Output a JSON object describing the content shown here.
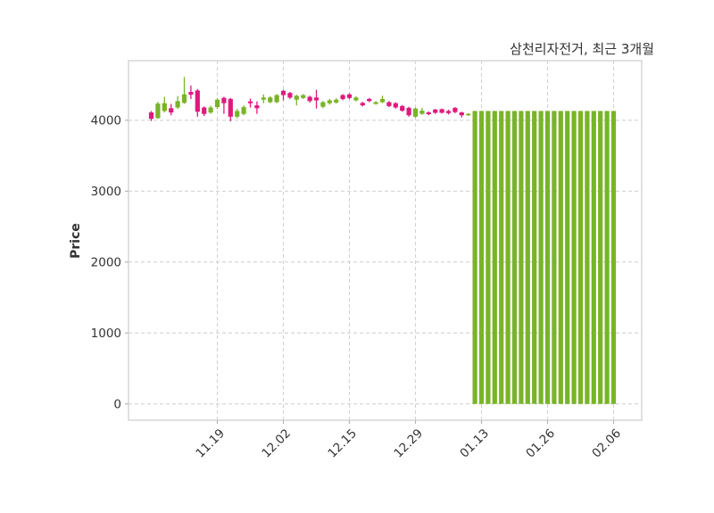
{
  "title": "삼천리자전거, 최근 3개월",
  "colors": {
    "up": "#79b428",
    "down": "#df1a7d",
    "grid": "#d2d2d2",
    "spine": "#d9d9d9",
    "tick": "#b5b5b5",
    "text": "#333333",
    "background": "#ffffff"
  },
  "chart_data": {
    "type": "candlestick",
    "title": "삼천리자전거, 최근 3개월",
    "ylabel": "Price",
    "xlabel": "",
    "ylim": [
      -230,
      4840
    ],
    "yticks": [
      0,
      1000,
      2000,
      3000,
      4000
    ],
    "xtick_labels": [
      "11.19",
      "12.02",
      "12.15",
      "12.29",
      "01.13",
      "01.26",
      "02.06"
    ],
    "xtick_indices": [
      10,
      20,
      30,
      40,
      50,
      60,
      70
    ],
    "grid": "dashed, both axes",
    "legend": "none",
    "up_color": "#79b428",
    "down_color": "#df1a7d",
    "note": "last 22 sessions render as full bars from 0 to ~4130 (open/low = 0)",
    "ohlc": [
      [
        4110,
        4130,
        3990,
        4020
      ],
      [
        4030,
        4260,
        4020,
        4235
      ],
      [
        4130,
        4330,
        4110,
        4240
      ],
      [
        4170,
        4230,
        4070,
        4110
      ],
      [
        4180,
        4340,
        4160,
        4270
      ],
      [
        4245,
        4610,
        4230,
        4365
      ],
      [
        4400,
        4490,
        4300,
        4360
      ],
      [
        4420,
        4440,
        4050,
        4120
      ],
      [
        4180,
        4195,
        4060,
        4090
      ],
      [
        4110,
        4205,
        4090,
        4180
      ],
      [
        4185,
        4310,
        4160,
        4290
      ],
      [
        4315,
        4330,
        4090,
        4240
      ],
      [
        4300,
        4315,
        3985,
        4050
      ],
      [
        4050,
        4160,
        4030,
        4130
      ],
      [
        4090,
        4210,
        4070,
        4185
      ],
      [
        4265,
        4305,
        4180,
        4240
      ],
      [
        4210,
        4265,
        4090,
        4170
      ],
      [
        4290,
        4365,
        4240,
        4320
      ],
      [
        4255,
        4340,
        4240,
        4320
      ],
      [
        4255,
        4370,
        4240,
        4355
      ],
      [
        4415,
        4430,
        4280,
        4355
      ],
      [
        4385,
        4400,
        4300,
        4320
      ],
      [
        4290,
        4360,
        4210,
        4345
      ],
      [
        4315,
        4370,
        4300,
        4355
      ],
      [
        4330,
        4345,
        4250,
        4270
      ],
      [
        4320,
        4430,
        4165,
        4280
      ],
      [
        4190,
        4270,
        4170,
        4255
      ],
      [
        4240,
        4300,
        4220,
        4280
      ],
      [
        4250,
        4310,
        4235,
        4290
      ],
      [
        4355,
        4370,
        4280,
        4300
      ],
      [
        4365,
        4380,
        4295,
        4315
      ],
      [
        4280,
        4340,
        4265,
        4320
      ],
      [
        4245,
        4260,
        4195,
        4210
      ],
      [
        4300,
        4315,
        4255,
        4270
      ],
      [
        4230,
        4270,
        4220,
        4255
      ],
      [
        4255,
        4345,
        4240,
        4300
      ],
      [
        4255,
        4270,
        4185,
        4200
      ],
      [
        4240,
        4255,
        4165,
        4180
      ],
      [
        4200,
        4215,
        4120,
        4135
      ],
      [
        4175,
        4190,
        4050,
        4070
      ],
      [
        4050,
        4180,
        4035,
        4165
      ],
      [
        4090,
        4175,
        4075,
        4135
      ],
      [
        4110,
        4125,
        4070,
        4085
      ],
      [
        4150,
        4160,
        4090,
        4105
      ],
      [
        4155,
        4165,
        4095,
        4105
      ],
      [
        4130,
        4150,
        4080,
        4100
      ],
      [
        4175,
        4185,
        4100,
        4115
      ],
      [
        4110,
        4120,
        4040,
        4070
      ],
      [
        4070,
        4100,
        4060,
        4090
      ],
      [
        0,
        4130,
        0,
        4130
      ],
      [
        0,
        4130,
        0,
        4130
      ],
      [
        0,
        4130,
        0,
        4130
      ],
      [
        0,
        4130,
        0,
        4130
      ],
      [
        0,
        4130,
        0,
        4130
      ],
      [
        0,
        4130,
        0,
        4130
      ],
      [
        0,
        4130,
        0,
        4130
      ],
      [
        0,
        4130,
        0,
        4130
      ],
      [
        0,
        4130,
        0,
        4130
      ],
      [
        0,
        4130,
        0,
        4130
      ],
      [
        0,
        4130,
        0,
        4130
      ],
      [
        0,
        4130,
        0,
        4130
      ],
      [
        0,
        4130,
        0,
        4130
      ],
      [
        0,
        4130,
        0,
        4130
      ],
      [
        0,
        4130,
        0,
        4130
      ],
      [
        0,
        4130,
        0,
        4130
      ],
      [
        0,
        4130,
        0,
        4130
      ],
      [
        0,
        4130,
        0,
        4130
      ],
      [
        0,
        4130,
        0,
        4130
      ],
      [
        0,
        4130,
        0,
        4130
      ],
      [
        0,
        4130,
        0,
        4130
      ],
      [
        0,
        4130,
        0,
        4130
      ]
    ]
  }
}
